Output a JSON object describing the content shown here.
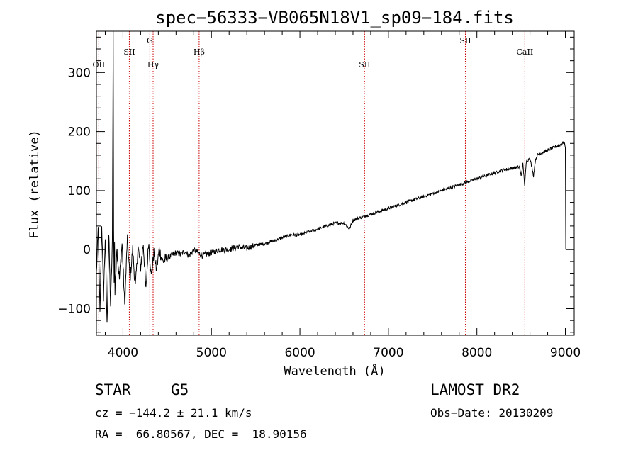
{
  "chart_data": {
    "type": "line",
    "title": "spec−56333−VB065N18V1_sp09−184.fits",
    "xlabel": "Wavelength (Å)",
    "ylabel": "Flux (relative)",
    "xlim": [
      3700,
      9100
    ],
    "ylim": [
      -145,
      370
    ],
    "xticks": [
      4000,
      5000,
      6000,
      7000,
      8000,
      9000
    ],
    "yticks": [
      -100,
      0,
      100,
      200,
      300
    ],
    "ytick_labels": [
      "−100",
      "0",
      "100",
      "200",
      "300"
    ],
    "grid": false,
    "series": [
      {
        "x": [
          3700,
          3720,
          3740,
          3760,
          3780,
          3800,
          3820,
          3840,
          3860,
          3880,
          3890,
          3895,
          3900,
          3905,
          3910,
          3930,
          3960,
          3990,
          4020,
          4050,
          4080,
          4110,
          4140,
          4170,
          4200,
          4230,
          4260,
          4290,
          4320,
          4350,
          4380,
          4410,
          4450,
          4500,
          4550,
          4600,
          4650,
          4700,
          4750,
          4800,
          4850,
          4900,
          5000,
          5100,
          5200,
          5300,
          5400,
          5500,
          5600,
          5700,
          5800,
          5900,
          6000,
          6100,
          6200,
          6300,
          6400,
          6500,
          6560,
          6600,
          6700,
          6800,
          6900,
          7000,
          7100,
          7200,
          7300,
          7400,
          7500,
          7600,
          7700,
          7800,
          7900,
          8000,
          8100,
          8200,
          8300,
          8400,
          8480,
          8500,
          8520,
          8540,
          8560,
          8600,
          8640,
          8660,
          8680,
          8700,
          8750,
          8800,
          8850,
          8900,
          8950,
          8980,
          9000,
          9005
        ],
        "y": [
          -40,
          35,
          -110,
          45,
          -80,
          20,
          -130,
          25,
          -95,
          10,
          370,
          30,
          -60,
          15,
          -75,
          5,
          -50,
          10,
          -95,
          20,
          -50,
          0,
          -65,
          5,
          -30,
          10,
          -70,
          15,
          -45,
          -5,
          -35,
          0,
          -20,
          -15,
          -10,
          -5,
          -8,
          -3,
          -10,
          0,
          -5,
          -10,
          -5,
          0,
          0,
          5,
          2,
          8,
          10,
          15,
          20,
          25,
          25,
          30,
          35,
          40,
          45,
          45,
          35,
          50,
          55,
          60,
          65,
          70,
          75,
          80,
          85,
          90,
          95,
          100,
          105,
          110,
          115,
          120,
          125,
          130,
          135,
          138,
          140,
          125,
          145,
          110,
          150,
          155,
          125,
          150,
          160,
          162,
          165,
          168,
          172,
          175,
          178,
          182,
          175,
          0
        ]
      }
    ],
    "lines": [
      {
        "label": "OII",
        "x": 3727,
        "row": 2
      },
      {
        "label": "SII",
        "x": 4072,
        "row": 1
      },
      {
        "label": "G",
        "x": 4304,
        "row": 0
      },
      {
        "label": "Hγ",
        "x": 4341,
        "row": 2
      },
      {
        "label": "Hβ",
        "x": 4861,
        "row": 1
      },
      {
        "label": "SII",
        "x": 6731,
        "row": 2
      },
      {
        "label": "SII",
        "x": 7870,
        "row": 0
      },
      {
        "label": "CaII",
        "x": 8542,
        "row": 1
      }
    ]
  },
  "info": {
    "object_class": "STAR",
    "subclass": "G5",
    "survey": "LAMOST DR2",
    "cz": "cz = −144.2 ± 21.1 km/s",
    "obs_date": "Obs−Date: 20130209",
    "coords": "RA =  66.80567, DEC =  18.90156"
  },
  "colors": {
    "spectrum": "#000000",
    "line_marker": "#cc0000",
    "text": "#000000"
  }
}
